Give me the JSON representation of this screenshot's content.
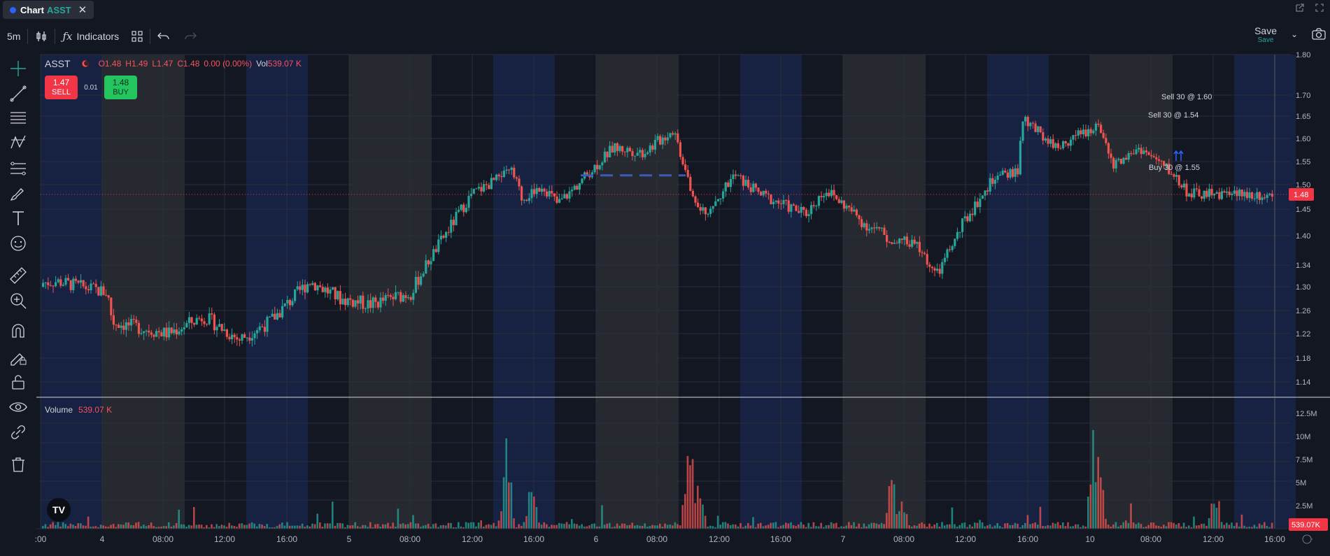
{
  "title_tab": {
    "word": "Chart",
    "symbol": "ASST"
  },
  "toolbar": {
    "interval": "5m",
    "indicators_label": "Indicators",
    "save_label": "Save",
    "save_sub": "Save"
  },
  "legend": {
    "symbol": "ASST",
    "open": "O1.48",
    "high": "H1.49",
    "low": "L1.47",
    "close": "C1.48",
    "change": "0.00 (0.00%)",
    "vol_label": "Vol",
    "vol_value": "539.07 K"
  },
  "trade": {
    "sell_price": "1.47",
    "sell_label": "SELL",
    "spread": "0.01",
    "buy_price": "1.48",
    "buy_label": "BUY"
  },
  "volume_pane": {
    "label": "Volume",
    "value": "539.07 K"
  },
  "colors": {
    "background": "#131722",
    "up": "#26a69a",
    "down": "#ef5350",
    "last_price": "#f23645",
    "session_premarket": "#1c2a5c",
    "session_afterhours": "#2c2e33"
  },
  "chart_data": {
    "type": "candlestick",
    "symbol": "ASST",
    "interval": "5m",
    "last_price": 1.48,
    "last_volume": "539.07K",
    "price_axis_ticks": [
      "1.80",
      "1.70",
      "1.65",
      "1.60",
      "1.55",
      "1.50",
      "1.45",
      "1.40",
      "1.34",
      "1.30",
      "1.26",
      "1.22",
      "1.18",
      "1.14"
    ],
    "volume_axis_ticks": [
      "12.5M",
      "10M",
      "7.5M",
      "5M",
      "2.5M"
    ],
    "time_axis_ticks": [
      ":00",
      "4",
      "08:00",
      "12:00",
      "16:00",
      "5",
      "08:00",
      "12:00",
      "16:00",
      "6",
      "08:00",
      "12:00",
      "16:00",
      "7",
      "08:00",
      "12:00",
      "16:00",
      "10",
      "08:00",
      "12:00",
      "16:00"
    ],
    "price_path": [
      {
        "d": 0,
        "p": 1.3
      },
      {
        "d": 0.5,
        "p": 1.31
      },
      {
        "d": 1.0,
        "p": 1.29
      },
      {
        "d": 1.05,
        "p": 1.24
      },
      {
        "d": 1.6,
        "p": 1.22
      },
      {
        "d": 1.95,
        "p": 1.25
      },
      {
        "d": 2.3,
        "p": 1.21
      },
      {
        "d": 2.6,
        "p": 1.24
      },
      {
        "d": 3.0,
        "p": 1.31
      },
      {
        "d": 3.3,
        "p": 1.28
      },
      {
        "d": 3.6,
        "p": 1.27
      },
      {
        "d": 4.0,
        "p": 1.29
      },
      {
        "d": 4.3,
        "p": 1.39
      },
      {
        "d": 4.6,
        "p": 1.48
      },
      {
        "d": 5.0,
        "p": 1.53
      },
      {
        "d": 5.1,
        "p": 1.47
      },
      {
        "d": 5.3,
        "p": 1.5
      },
      {
        "d": 5.45,
        "p": 1.46
      },
      {
        "d": 5.6,
        "p": 1.49
      },
      {
        "d": 6.0,
        "p": 1.58
      },
      {
        "d": 6.3,
        "p": 1.57
      },
      {
        "d": 6.6,
        "p": 1.62
      },
      {
        "d": 6.75,
        "p": 1.5
      },
      {
        "d": 6.9,
        "p": 1.44
      },
      {
        "d": 7.2,
        "p": 1.52
      },
      {
        "d": 7.45,
        "p": 1.48
      },
      {
        "d": 7.9,
        "p": 1.44
      },
      {
        "d": 8.1,
        "p": 1.49
      },
      {
        "d": 8.5,
        "p": 1.42
      },
      {
        "d": 8.8,
        "p": 1.39
      },
      {
        "d": 9.0,
        "p": 1.38
      },
      {
        "d": 9.2,
        "p": 1.32
      },
      {
        "d": 9.45,
        "p": 1.42
      },
      {
        "d": 9.75,
        "p": 1.51
      },
      {
        "d": 10.0,
        "p": 1.53
      },
      {
        "d": 10.05,
        "p": 1.64
      },
      {
        "d": 10.4,
        "p": 1.58
      },
      {
        "d": 10.6,
        "p": 1.61
      },
      {
        "d": 10.8,
        "p": 1.63
      },
      {
        "d": 10.95,
        "p": 1.54
      },
      {
        "d": 11.2,
        "p": 1.58
      },
      {
        "d": 11.5,
        "p": 1.53
      },
      {
        "d": 11.7,
        "p": 1.48
      }
    ],
    "volume_spikes": [
      {
        "d": 4.95,
        "v": 12.0
      },
      {
        "d": 5.2,
        "v": 7.0
      },
      {
        "d": 6.75,
        "v": 12.4
      },
      {
        "d": 6.85,
        "v": 7.0
      },
      {
        "d": 8.75,
        "v": 6.5
      },
      {
        "d": 8.85,
        "v": 5.0
      },
      {
        "d": 10.75,
        "v": 12.4
      },
      {
        "d": 10.8,
        "v": 10.5
      },
      {
        "d": 11.95,
        "v": 5.5
      }
    ],
    "annotations": [
      "Sell 30 @ 1.60",
      "Sell 30 @ 1.54",
      "Buy 30 @ 1.55"
    ]
  }
}
